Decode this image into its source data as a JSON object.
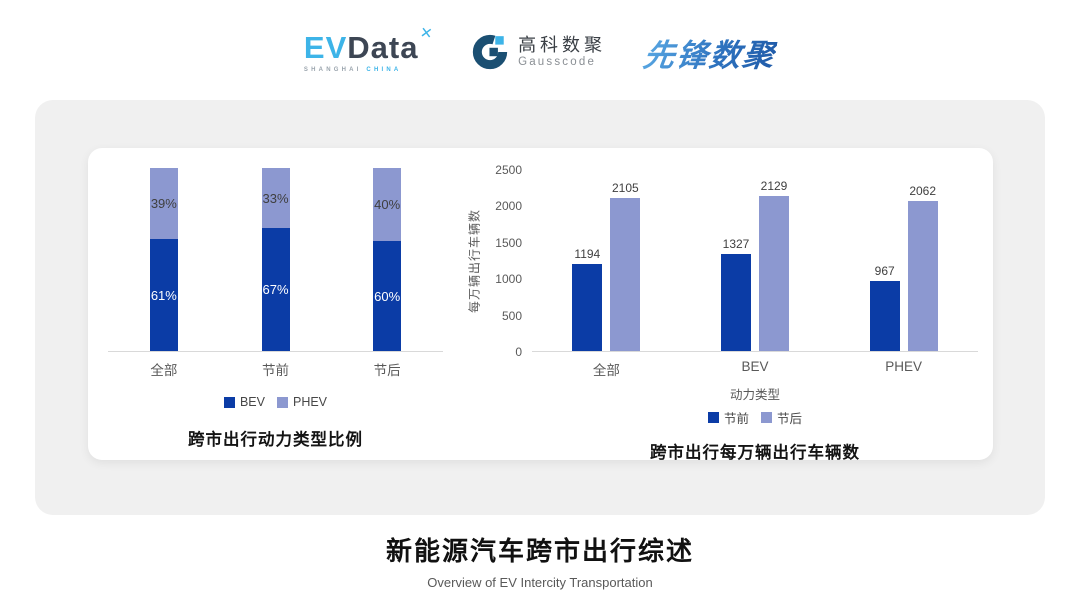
{
  "header": {
    "evdata": {
      "ev": "EV",
      "data": "Data",
      "mark": "✕",
      "sub_left": "SHANGHAI",
      "sub_right": "CHINA"
    },
    "gausscode": {
      "cn": "高科数聚",
      "en": "Gausscode"
    },
    "pioneer": {
      "text": "先锋数聚"
    }
  },
  "chart_data": [
    {
      "type": "bar",
      "subtype": "stacked_percent_column",
      "title": "跨市出行动力类型比例",
      "categories": [
        "全部",
        "节前",
        "节后"
      ],
      "series": [
        {
          "name": "BEV",
          "values": [
            61,
            67,
            60
          ],
          "color": "#0b3ca6",
          "label_color": "#ffffff"
        },
        {
          "name": "PHEV",
          "values": [
            39,
            33,
            40
          ],
          "color": "#8c98d0",
          "label_color": "#3f3f3f"
        }
      ],
      "value_suffix": "%",
      "ylim": [
        0,
        100
      ],
      "legend_position": "bottom",
      "grid": false
    },
    {
      "type": "bar",
      "subtype": "grouped_column",
      "title": "跨市出行每万辆出行车辆数",
      "categories": [
        "全部",
        "BEV",
        "PHEV"
      ],
      "xlabel": "动力类型",
      "ylabel": "每万辆出行车辆数",
      "yticks": [
        0,
        500,
        1000,
        1500,
        2000,
        2500
      ],
      "ylim": [
        0,
        2500
      ],
      "series": [
        {
          "name": "节前",
          "values": [
            1194,
            1327,
            967
          ],
          "color": "#0b3ca6"
        },
        {
          "name": "节后",
          "values": [
            2105,
            2129,
            2062
          ],
          "color": "#8c98d0"
        }
      ],
      "legend_position": "bottom",
      "grid": false
    }
  ],
  "footer": {
    "title": "新能源汽车跨市出行综述",
    "subtitle": "Overview of EV Intercity Transportation"
  },
  "colors": {
    "primary_dark": "#0b3ca6",
    "primary_light": "#8c98d0",
    "panel_bg": "#f0f0f0",
    "card_bg": "#ffffff",
    "accent_cyan": "#3db4e8",
    "logo_dark": "#3d4654",
    "gausscode_navy": "#1b4f72"
  }
}
